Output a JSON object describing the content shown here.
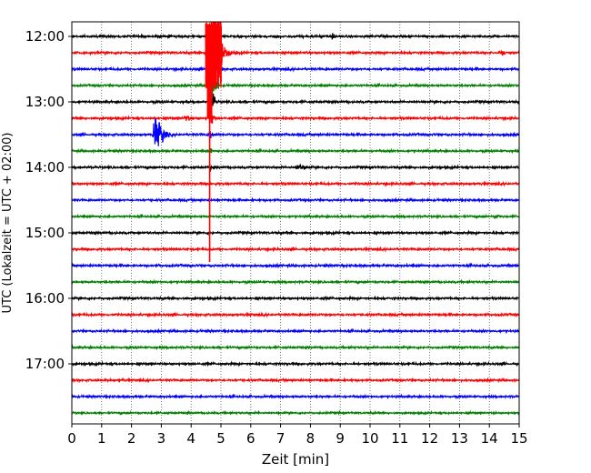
{
  "chart_data": {
    "type": "line",
    "title": "",
    "xlabel": "Zeit  [min]",
    "ylabel": "UTC (Lokalzeit = UTC + 02:00)",
    "xlim": [
      0,
      15
    ],
    "xticks": [
      0,
      1,
      2,
      3,
      4,
      5,
      6,
      7,
      8,
      9,
      10,
      11,
      12,
      13,
      14,
      15
    ],
    "grid": "vertical-dotted",
    "row_interval_min": 15,
    "start_time": "12:00",
    "y_tick_labels": [
      "12:00",
      "13:00",
      "14:00",
      "15:00",
      "16:00",
      "17:00"
    ],
    "row_colors": [
      "#000000",
      "#ff0000",
      "#0000ff",
      "#008000"
    ],
    "rows": [
      {
        "time": "12:00",
        "color": "#000000",
        "noise": 0.6,
        "events": [
          {
            "t": 8.75,
            "amp": 2.2,
            "width": 0.06
          }
        ]
      },
      {
        "time": "12:15",
        "color": "#ff0000",
        "noise": 0.6,
        "events": [
          {
            "t": 4.75,
            "amp": 14,
            "width": 0.35
          },
          {
            "t": 14.4,
            "amp": 1.2,
            "width": 0.15
          }
        ]
      },
      {
        "time": "12:30",
        "color": "#0000ff",
        "noise": 0.6,
        "events": [
          {
            "t": 4.72,
            "amp": 10,
            "width": 0.15
          }
        ]
      },
      {
        "time": "12:45",
        "color": "#008000",
        "noise": 0.55,
        "events": [
          {
            "t": 4.7,
            "amp": 10,
            "width": 0.12
          }
        ]
      },
      {
        "time": "13:00",
        "color": "#000000",
        "noise": 0.6,
        "events": [
          {
            "t": 4.68,
            "amp": 8,
            "width": 0.1
          }
        ]
      },
      {
        "time": "13:15",
        "color": "#ff0000",
        "noise": 0.6,
        "events": [
          {
            "t": 4.66,
            "amp": 6,
            "width": 0.08
          },
          {
            "t": 3.8,
            "amp": 1.0,
            "width": 0.2
          }
        ]
      },
      {
        "time": "13:30",
        "color": "#0000ff",
        "noise": 0.6,
        "events": [
          {
            "t": 2.8,
            "amp": 9,
            "width": 0.28
          },
          {
            "t": 4.64,
            "amp": 3,
            "width": 0.06
          }
        ]
      },
      {
        "time": "13:45",
        "color": "#008000",
        "noise": 0.55,
        "events": [
          {
            "t": 4.63,
            "amp": 2.5,
            "width": 0.05
          }
        ]
      },
      {
        "time": "14:00",
        "color": "#000000",
        "noise": 0.6,
        "events": [
          {
            "t": 7.6,
            "amp": 1.3,
            "width": 0.25
          },
          {
            "t": 4.62,
            "amp": 2,
            "width": 0.04
          }
        ]
      },
      {
        "time": "14:15",
        "color": "#ff0000",
        "noise": 0.6,
        "events": [
          {
            "t": 4.62,
            "amp": 1.5,
            "width": 0.04
          }
        ]
      },
      {
        "time": "14:30",
        "color": "#0000ff",
        "noise": 0.55,
        "events": []
      },
      {
        "time": "14:45",
        "color": "#008000",
        "noise": 0.55,
        "events": [
          {
            "t": 14.2,
            "amp": 1.2,
            "width": 0.1
          }
        ]
      },
      {
        "time": "15:00",
        "color": "#000000",
        "noise": 0.6,
        "events": []
      },
      {
        "time": "15:15",
        "color": "#ff0000",
        "noise": 0.6,
        "events": []
      },
      {
        "time": "15:30",
        "color": "#0000ff",
        "noise": 0.6,
        "events": []
      },
      {
        "time": "15:45",
        "color": "#008000",
        "noise": 0.55,
        "events": []
      },
      {
        "time": "16:00",
        "color": "#000000",
        "noise": 0.6,
        "events": []
      },
      {
        "time": "16:15",
        "color": "#ff0000",
        "noise": 0.6,
        "events": []
      },
      {
        "time": "16:30",
        "color": "#0000ff",
        "noise": 0.55,
        "events": []
      },
      {
        "time": "16:45",
        "color": "#008000",
        "noise": 0.55,
        "events": []
      },
      {
        "time": "17:00",
        "color": "#000000",
        "noise": 0.6,
        "events": []
      },
      {
        "time": "17:15",
        "color": "#ff0000",
        "noise": 0.55,
        "events": []
      },
      {
        "time": "17:30",
        "color": "#0000ff",
        "noise": 0.55,
        "events": []
      },
      {
        "time": "17:45",
        "color": "#008000",
        "noise": 0.5,
        "events": []
      }
    ],
    "vertical_spike": {
      "t": 4.62,
      "from": "12:00",
      "to": "15:30",
      "color": "#ff0000"
    }
  }
}
